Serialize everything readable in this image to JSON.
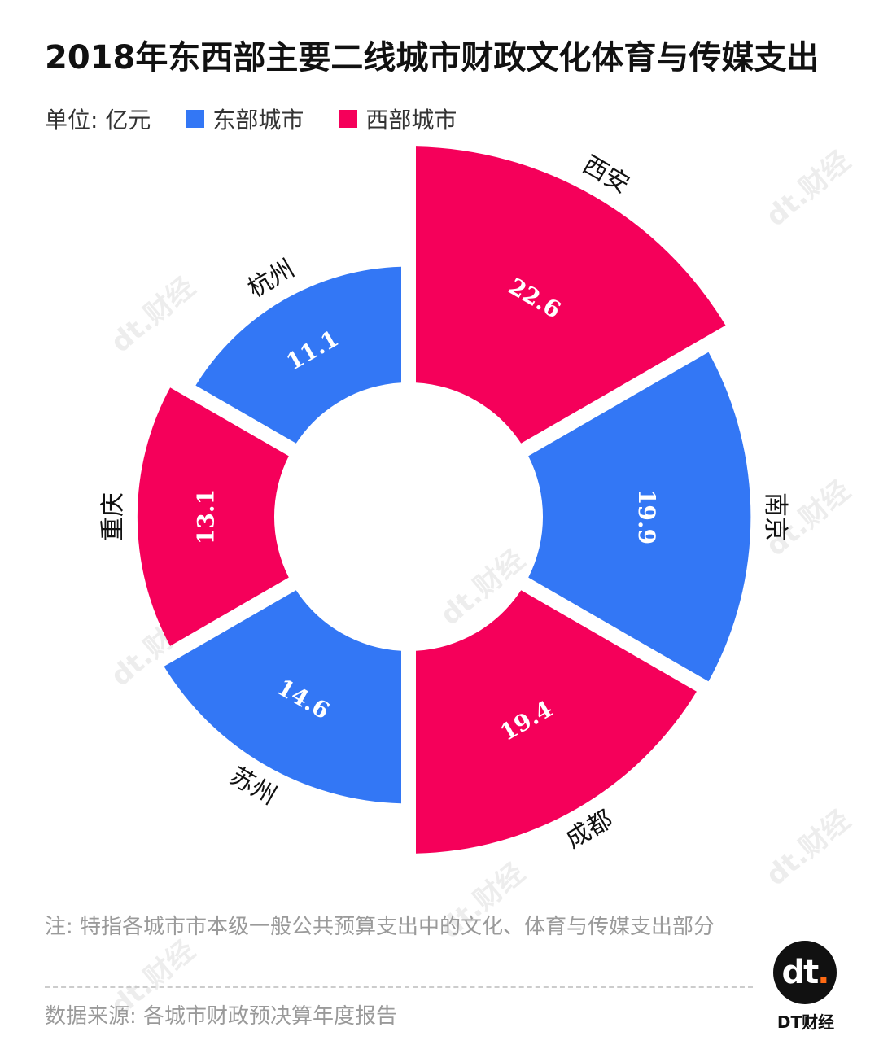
{
  "title": "2018年东西部主要二线城市财政文化体育与传媒支出",
  "unit_label": "单位: 亿元",
  "legend": [
    {
      "name": "东部城市",
      "color": "#3377f5"
    },
    {
      "name": "西部城市",
      "color": "#f5005a"
    }
  ],
  "chart_data": {
    "type": "pie",
    "variant": "polar-area-donut",
    "categories": [
      "西安",
      "南京",
      "成都",
      "苏州",
      "重庆",
      "杭州"
    ],
    "values": [
      22.6,
      19.9,
      19.4,
      14.6,
      13.1,
      11.1
    ],
    "groups": [
      "西部城市",
      "东部城市",
      "西部城市",
      "东部城市",
      "西部城市",
      "东部城市"
    ],
    "data_labels": [
      "22.6",
      "19.9",
      "19.4",
      "14.6",
      "13.1",
      "11.1"
    ]
  },
  "watermark_text": "dt.财经",
  "footnote": "注: 特指各城市市本级一般公共预算支出中的文化、体育与传媒支出部分",
  "source": "数据来源: 各城市财政预决算年度报告",
  "logo": {
    "mark": "dt",
    "dot": ".",
    "name": "DT财经"
  }
}
